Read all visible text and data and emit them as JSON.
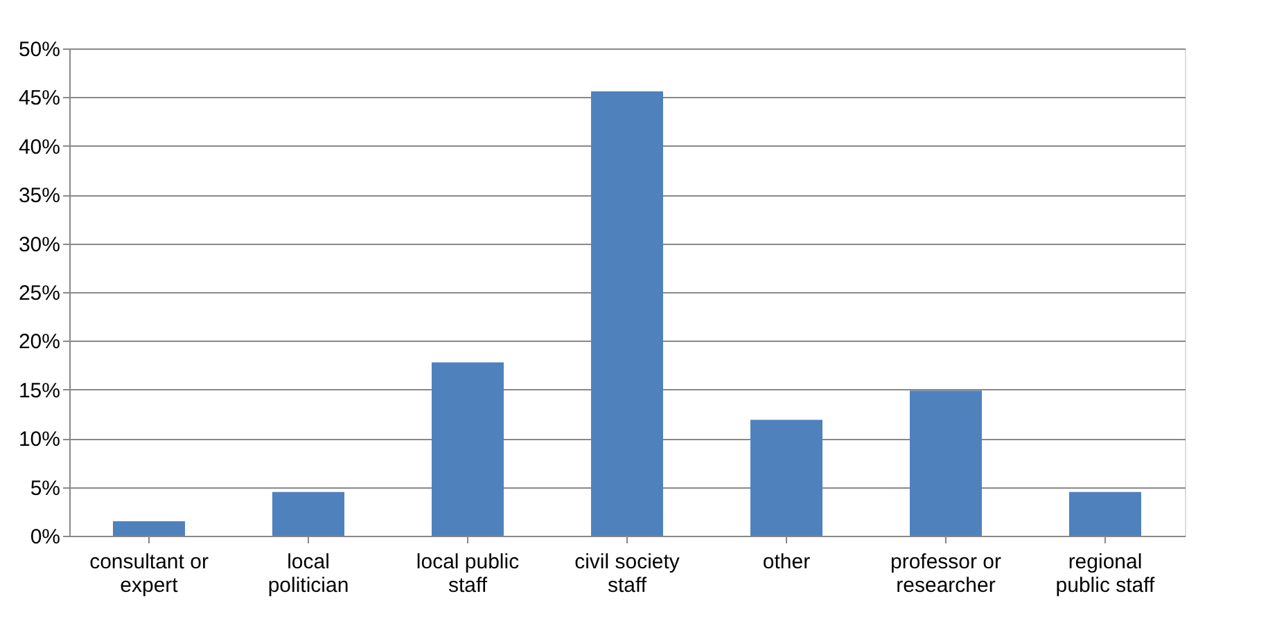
{
  "chart_data": {
    "type": "bar",
    "categories": [
      "consultant or\nexpert",
      "local\npolitician",
      "local public\nstaff",
      "civil society\nstaff",
      "other",
      "professor or\nresearcher",
      "regional\npublic staff"
    ],
    "values": [
      1.5,
      4.5,
      17.8,
      45.6,
      11.9,
      14.9,
      4.5
    ],
    "color": "#4f81bd",
    "ylim": [
      0,
      50
    ],
    "yticks": [
      {
        "value": 0,
        "label": "0%"
      },
      {
        "value": 5,
        "label": "5%"
      },
      {
        "value": 10,
        "label": "10%"
      },
      {
        "value": 15,
        "label": "15%"
      },
      {
        "value": 20,
        "label": "20%"
      },
      {
        "value": 25,
        "label": "25%"
      },
      {
        "value": 30,
        "label": "30%"
      },
      {
        "value": 35,
        "label": "35%"
      },
      {
        "value": 40,
        "label": "40%"
      },
      {
        "value": 45,
        "label": "45%"
      },
      {
        "value": 50,
        "label": "50%"
      }
    ],
    "grid": "y"
  }
}
